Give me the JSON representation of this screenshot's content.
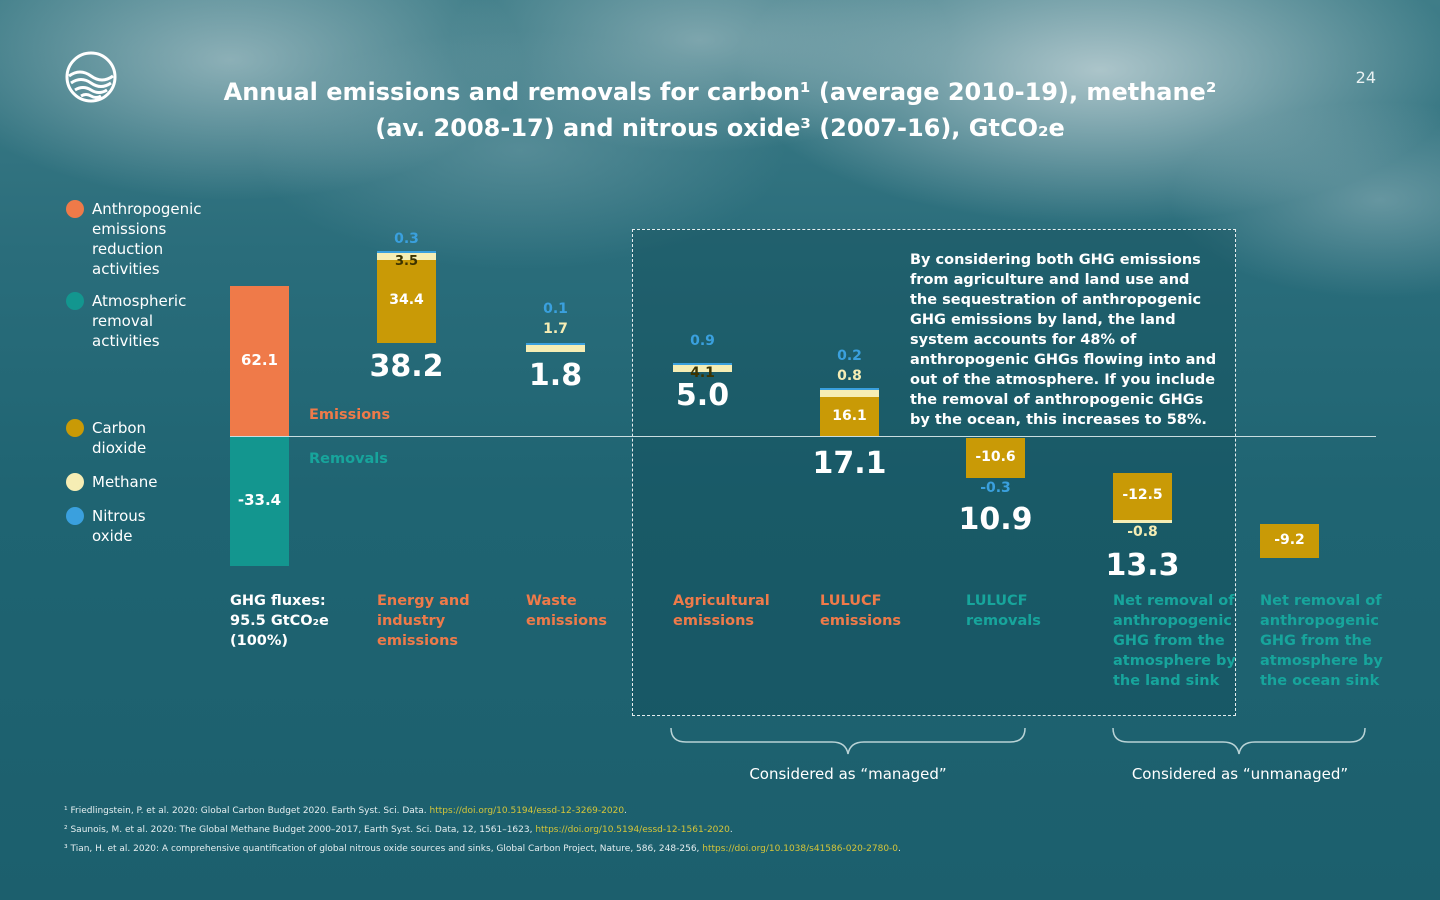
{
  "page_number": "24",
  "title_line1": "Annual emissions and removals for carbon¹ (average 2010-19), methane²",
  "title_line2": "(av. 2008-17) and nitrous oxide³ (2007-16), GtCO₂e",
  "colors": {
    "anthropogenic": "#ef7a49",
    "atmospheric": "#13968f",
    "carbon": "#c99a06",
    "methane": "#f6edb4",
    "nitrous": "#3aa0de",
    "emissions_text": "#ef7a49",
    "removals_text": "#17a59c"
  },
  "legend": [
    {
      "label": "Anthropogenic emissions reduction activities",
      "color": "#ef7a49"
    },
    {
      "label": "Atmospheric removal activities",
      "color": "#13968f"
    },
    {
      "label": "Carbon dioxide",
      "color": "#c99a06"
    },
    {
      "label": "Methane",
      "color": "#f6edb4"
    },
    {
      "label": "Nitrous oxide",
      "color": "#3aa0de"
    }
  ],
  "axis_labels": {
    "emissions": "Emissions",
    "removals": "Removals"
  },
  "box_text": "By considering both GHG emissions from agriculture and land use and the sequestration of anthropogenic GHG emissions by land, the land system accounts for 48% of anthropogenic GHGs flowing into and out of the atmosphere. If you include the removal of anthropogenic GHGs by the ocean, this increases to 58%.",
  "groups": {
    "managed": "Considered as “managed”",
    "unmanaged": "Considered as “unmanaged”"
  },
  "chart_data": {
    "type": "bar",
    "categories": [
      "GHG fluxes: 95.5 GtCO₂e (100%)",
      "Energy and industry emissions",
      "Waste emissions",
      "Agricultural emissions",
      "LULUCF emissions",
      "LULUCF removals",
      "Net removal of anthropogenic GHG from the atmosphere by the land sink",
      "Net removal of anthropogenic GHG from the atmosphere by the ocean sink"
    ],
    "category_lines": [
      [
        "GHG fluxes:",
        "95.5 GtCO₂e",
        "(100%)"
      ],
      [
        "Energy and",
        "industry",
        "emissions"
      ],
      [
        "Waste",
        "emissions"
      ],
      [
        "Agricultural",
        "emissions"
      ],
      [
        "LULUCF",
        "emissions"
      ],
      [
        "LULUCF",
        "removals"
      ],
      [
        "Net removal of",
        "anthropogenic",
        "GHG from the",
        "atmosphere by",
        "the land sink"
      ],
      [
        "Net removal of",
        "anthropogenic",
        "GHG from the",
        "atmosphere by",
        "the ocean sink"
      ]
    ],
    "series": [
      {
        "name": "Anthropogenic emissions reduction activities",
        "values": [
          62.1,
          null,
          null,
          null,
          null,
          null,
          null,
          null
        ]
      },
      {
        "name": "Atmospheric removal activities",
        "values": [
          -33.4,
          null,
          null,
          null,
          null,
          null,
          null,
          null
        ]
      },
      {
        "name": "Carbon dioxide",
        "values": [
          null,
          34.4,
          null,
          null,
          16.1,
          -10.6,
          -12.5,
          -9.2
        ]
      },
      {
        "name": "Methane",
        "values": [
          null,
          3.5,
          1.7,
          4.1,
          0.8,
          null,
          -0.8,
          null
        ]
      },
      {
        "name": "Nitrous oxide",
        "values": [
          null,
          0.3,
          0.1,
          0.9,
          0.2,
          -0.3,
          null,
          null
        ]
      }
    ],
    "totals": [
      null,
      "38.2",
      "1.8",
      "5.0",
      "17.1",
      "10.9",
      "13.3",
      null
    ],
    "ylim": [
      -33.4,
      62.1
    ]
  },
  "footnotes": [
    {
      "text": "¹ Friedlingstein, P. et al. 2020: Global Carbon Budget 2020. Earth Syst. Sci. Data. ",
      "link": "https://doi.org/10.5194/essd-12-3269-2020",
      "after": "."
    },
    {
      "text": "² Saunois, M. et al. 2020: The Global Methane Budget 2000–2017, Earth Syst. Sci. Data, 12, 1561–1623, ",
      "link": "https://doi.org/10.5194/essd-12-1561-2020",
      "after": "."
    },
    {
      "text": "³ Tian, H. et al. 2020: A comprehensive quantification of global nitrous oxide sources and sinks, Global Carbon Project, Nature, 586, 248-256, ",
      "link": "https://doi.org/10.1038/s41586-020-2780-0",
      "after": "."
    }
  ]
}
